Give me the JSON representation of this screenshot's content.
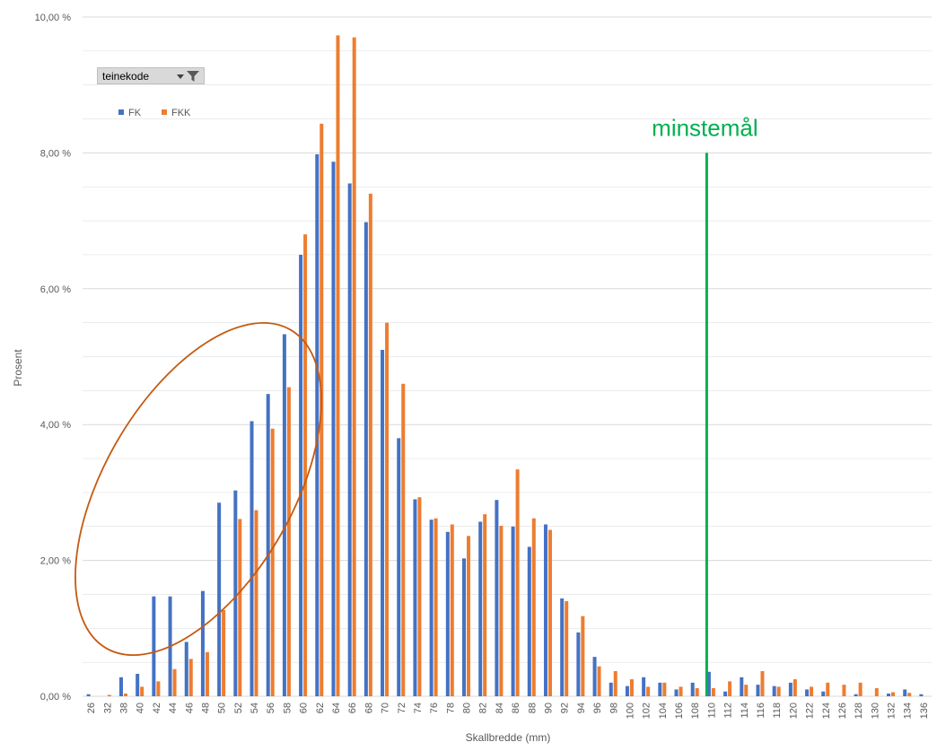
{
  "filter": {
    "label": "teinekode"
  },
  "colors": {
    "FK": "#4472c4",
    "FKK": "#ed7d31",
    "line": "#00b050",
    "ellipse": "#c55a11",
    "grid": "#d9d9d9"
  },
  "chart_data": {
    "type": "bar",
    "title": "",
    "xlabel": "Skallbredde (mm)",
    "ylabel": "Prosent",
    "ylim": [
      0,
      10
    ],
    "yticks": [
      "0,00 %",
      "2,00 %",
      "4,00 %",
      "6,00 %",
      "8,00 %",
      "10,00 %"
    ],
    "legend": "top-left",
    "grid": true,
    "categories": [
      "26",
      "32",
      "38",
      "40",
      "42",
      "44",
      "46",
      "48",
      "50",
      "52",
      "54",
      "56",
      "58",
      "60",
      "62",
      "64",
      "66",
      "68",
      "70",
      "72",
      "74",
      "76",
      "78",
      "80",
      "82",
      "84",
      "86",
      "88",
      "90",
      "92",
      "94",
      "96",
      "98",
      "100",
      "102",
      "104",
      "106",
      "108",
      "110",
      "112",
      "114",
      "116",
      "118",
      "120",
      "122",
      "124",
      "126",
      "128",
      "130",
      "132",
      "134",
      "136"
    ],
    "series": [
      {
        "name": "FK",
        "values": [
          0.03,
          0.0,
          0.28,
          0.33,
          1.47,
          1.47,
          0.8,
          1.55,
          2.85,
          3.03,
          4.05,
          4.45,
          5.33,
          6.5,
          7.98,
          7.87,
          7.55,
          6.98,
          5.1,
          3.8,
          2.9,
          2.6,
          2.42,
          2.03,
          2.57,
          2.89,
          2.5,
          2.2,
          2.53,
          1.44,
          0.94,
          0.58,
          0.2,
          0.15,
          0.28,
          0.2,
          0.1,
          0.2,
          0.36,
          0.07,
          0.28,
          0.17,
          0.15,
          0.2,
          0.1,
          0.07,
          0.0,
          0.03,
          0.0,
          0.04,
          0.1,
          0.03
        ]
      },
      {
        "name": "FKK",
        "values": [
          0.0,
          0.02,
          0.04,
          0.14,
          0.22,
          0.4,
          0.55,
          0.65,
          1.27,
          2.61,
          2.74,
          3.94,
          4.55,
          6.8,
          8.43,
          9.73,
          9.7,
          7.4,
          5.5,
          4.6,
          2.93,
          2.62,
          2.53,
          2.36,
          2.68,
          2.51,
          3.34,
          2.62,
          2.45,
          1.4,
          1.18,
          0.44,
          0.37,
          0.25,
          0.14,
          0.2,
          0.14,
          0.12,
          0.12,
          0.22,
          0.17,
          0.37,
          0.14,
          0.25,
          0.14,
          0.2,
          0.17,
          0.2,
          0.12,
          0.06,
          0.05,
          0.0
        ]
      }
    ],
    "annotations": [
      {
        "text": "minstemål",
        "at_category": "110",
        "value": 8.0
      }
    ]
  }
}
